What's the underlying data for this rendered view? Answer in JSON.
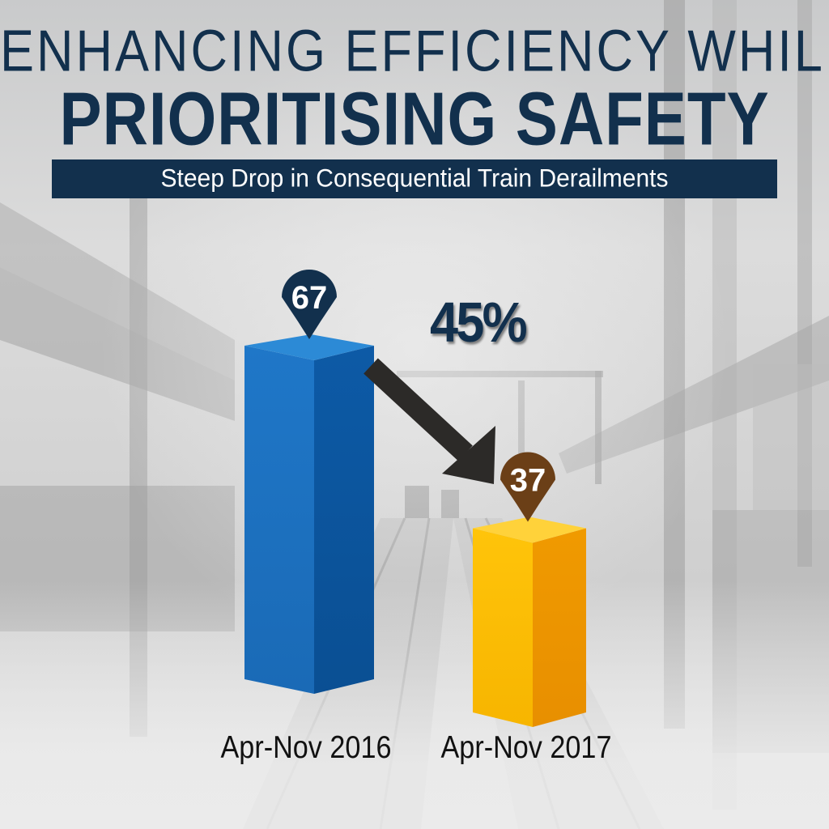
{
  "title": {
    "line1": "ENHANCING EFFICIENCY WHILE",
    "line2": "PRIORITISING SAFETY"
  },
  "subtitle": "Steep Drop in Consequential Train Derailments",
  "chart_data": {
    "type": "bar",
    "categories": [
      "Apr-Nov 2016",
      "Apr-Nov 2017"
    ],
    "values": [
      67,
      37
    ],
    "data_labels": [
      "67",
      "37"
    ],
    "title": "Steep Drop in Consequential Train Derailments",
    "annotation": "45%",
    "xlabel": "",
    "ylabel": "",
    "ylim": [
      0,
      67
    ],
    "grid": false,
    "legend": "none",
    "colors": {
      "bar_2016": "#1c70c0",
      "bar_2017": "#f6b200",
      "pin_2016": "#12304d",
      "pin_2017": "#6b3f17",
      "arrow": "#2c2a28",
      "title": "#12304d"
    }
  }
}
